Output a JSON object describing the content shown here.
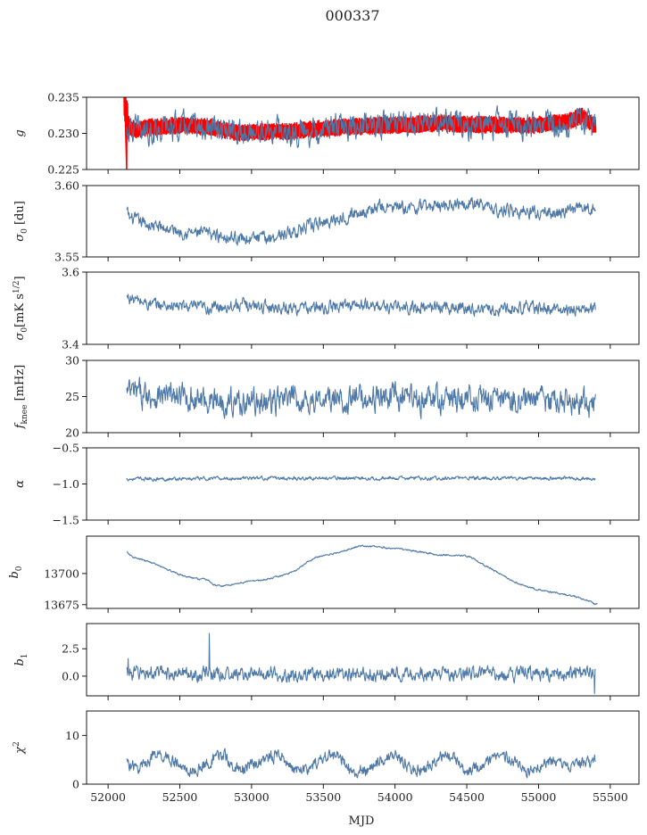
{
  "figure": {
    "title": "000337",
    "xlabel": "MJD"
  },
  "colors": {
    "series": "#4e79a7",
    "overlay": "#ff0000",
    "axis": "#000000",
    "background": "#ffffff"
  },
  "chart_data": [
    {
      "type": "line",
      "ylabel": "g",
      "ylim": [
        0.225,
        0.235
      ],
      "yticks": [
        0.225,
        0.23,
        0.235
      ],
      "ytick_labels": [
        "0.225",
        "0.230",
        "0.235"
      ],
      "xlim": [
        51850,
        55700
      ],
      "series": [
        {
          "color": "#ff0000",
          "band": 0.0009,
          "thin_line": true,
          "x": [
            52110,
            52125,
            52135,
            52150,
            52200,
            52300,
            52500,
            52700,
            52900,
            53100,
            53300,
            53500,
            53700,
            53900,
            54100,
            54300,
            54500,
            54700,
            54900,
            55100,
            55200,
            55300,
            55400
          ],
          "y": [
            0.2348,
            0.2326,
            0.232,
            0.2308,
            0.2305,
            0.2309,
            0.2311,
            0.2309,
            0.2301,
            0.2302,
            0.2303,
            0.2307,
            0.2309,
            0.2311,
            0.2312,
            0.2314,
            0.2312,
            0.2312,
            0.231,
            0.2314,
            0.2316,
            0.2324,
            0.2309
          ]
        },
        {
          "color": "#4e79a7",
          "noise": 0.0013,
          "x": [
            52130,
            52300,
            52500,
            52700,
            52900,
            53100,
            53300,
            53500,
            53700,
            53900,
            54100,
            54300,
            54500,
            54700,
            54900,
            55100,
            55300,
            55400
          ],
          "y": [
            0.2305,
            0.2305,
            0.231,
            0.2305,
            0.23,
            0.2304,
            0.2302,
            0.2307,
            0.231,
            0.2312,
            0.2314,
            0.2313,
            0.2311,
            0.2312,
            0.231,
            0.2314,
            0.2317,
            0.2312
          ]
        }
      ]
    },
    {
      "type": "line",
      "ylabel": "σ0 [du]",
      "ylim": [
        3.55,
        3.6
      ],
      "yticks": [
        3.55,
        3.6
      ],
      "ytick_labels": [
        "3.55",
        "3.60"
      ],
      "xlim": [
        51850,
        55700
      ],
      "series": [
        {
          "color": "#4e79a7",
          "noise": 0.0032,
          "x": [
            52130,
            52150,
            52300,
            52500,
            52700,
            52800,
            52950,
            53100,
            53300,
            53500,
            53700,
            53900,
            54100,
            54300,
            54500,
            54700,
            54900,
            55100,
            55300,
            55400
          ],
          "y": [
            3.582,
            3.577,
            3.572,
            3.568,
            3.566,
            3.565,
            3.563,
            3.563,
            3.568,
            3.574,
            3.58,
            3.585,
            3.584,
            3.586,
            3.589,
            3.583,
            3.582,
            3.58,
            3.584,
            3.584
          ]
        }
      ]
    },
    {
      "type": "line",
      "ylabel": "σ0[mK s^1/2]",
      "ylim": [
        3.4,
        3.6
      ],
      "yticks": [
        3.4,
        3.6
      ],
      "ytick_labels": [
        "3.4",
        "3.6"
      ],
      "xlim": [
        51850,
        55700
      ],
      "series": [
        {
          "color": "#4e79a7",
          "noise": 0.012,
          "x": [
            52130,
            52300,
            52500,
            52700,
            52900,
            53100,
            53300,
            53500,
            53700,
            53900,
            54100,
            54300,
            54500,
            54700,
            54900,
            55100,
            55300,
            55400
          ],
          "y": [
            3.53,
            3.51,
            3.505,
            3.5,
            3.51,
            3.505,
            3.5,
            3.5,
            3.51,
            3.505,
            3.5,
            3.505,
            3.5,
            3.495,
            3.505,
            3.495,
            3.495,
            3.5
          ]
        }
      ]
    },
    {
      "type": "line",
      "ylabel": "f_knee [mHz]",
      "ylim": [
        20,
        30
      ],
      "yticks": [
        20,
        25,
        30
      ],
      "ytick_labels": [
        "20",
        "25",
        "30"
      ],
      "xlim": [
        51850,
        55700
      ],
      "series": [
        {
          "color": "#4e79a7",
          "noise": 1.3,
          "x": [
            52130,
            52300,
            52500,
            52700,
            52900,
            53100,
            53300,
            53500,
            53700,
            53900,
            54100,
            54300,
            54500,
            54700,
            54900,
            55100,
            55300,
            55400
          ],
          "y": [
            25.5,
            25.2,
            24.9,
            24.5,
            24.3,
            24.2,
            24.6,
            24.4,
            24.7,
            24.9,
            24.6,
            24.5,
            24.8,
            24.4,
            24.6,
            24.5,
            24.3,
            24.2
          ]
        }
      ]
    },
    {
      "type": "line",
      "ylabel": "α",
      "ylim": [
        -1.5,
        -0.5
      ],
      "yticks": [
        -1.5,
        -1.0,
        -0.5
      ],
      "ytick_labels": [
        "−1.5",
        "−1.0",
        "−0.5"
      ],
      "xlim": [
        51850,
        55700
      ],
      "series": [
        {
          "color": "#4e79a7",
          "noise": 0.018,
          "x": [
            52130,
            52500,
            53000,
            53500,
            54000,
            54500,
            55000,
            55400
          ],
          "y": [
            -0.93,
            -0.93,
            -0.92,
            -0.92,
            -0.92,
            -0.92,
            -0.92,
            -0.92
          ]
        }
      ]
    },
    {
      "type": "line",
      "ylabel": "b0",
      "ylim": [
        13672,
        13730
      ],
      "yticks": [
        13675,
        13700
      ],
      "ytick_labels": [
        "13675",
        "13700"
      ],
      "xlim": [
        51850,
        55700
      ],
      "series": [
        {
          "color": "#4e79a7",
          "noise": 0.5,
          "x": [
            52130,
            52160,
            52200,
            52300,
            52400,
            52500,
            52600,
            52700,
            52710,
            52730,
            52800,
            52900,
            53000,
            53100,
            53200,
            53300,
            53400,
            53450,
            53500,
            53600,
            53700,
            53750,
            53800,
            53900,
            54000,
            54100,
            54200,
            54300,
            54400,
            54500,
            54550,
            54600,
            54700,
            54800,
            54900,
            55000,
            55100,
            55200,
            55300,
            55370,
            55390,
            55410
          ],
          "y": [
            13717,
            13714,
            13712,
            13709,
            13704,
            13699,
            13696,
            13695,
            13693,
            13691,
            13690,
            13692,
            13694,
            13695,
            13698,
            13702,
            13710,
            13713,
            13714,
            13717,
            13720,
            13722,
            13722,
            13721,
            13720,
            13719,
            13717,
            13715,
            13715,
            13714,
            13712,
            13708,
            13702,
            13695,
            13690,
            13687,
            13685,
            13683,
            13680,
            13677,
            13675,
            13676
          ]
        }
      ]
    },
    {
      "type": "line",
      "ylabel": "b1",
      "ylim": [
        -1.8,
        4.8
      ],
      "yticks": [
        0.0,
        2.5
      ],
      "ytick_labels": [
        "0.0",
        "2.5"
      ],
      "xlim": [
        51850,
        55700
      ],
      "series": [
        {
          "color": "#4e79a7",
          "noise": 0.45,
          "x": [
            52130,
            52500,
            53000,
            53500,
            54000,
            54500,
            55000,
            55400
          ],
          "y": [
            0.3,
            0.25,
            0.15,
            0.15,
            0.2,
            0.2,
            0.25,
            0.25
          ],
          "spikes": [
            [
              52705,
              3.9
            ],
            [
              55390,
              -1.6
            ],
            [
              52140,
              1.6
            ]
          ]
        }
      ]
    },
    {
      "type": "line",
      "ylabel": "χ²",
      "ylim": [
        0,
        15
      ],
      "yticks": [
        0,
        10
      ],
      "ytick_labels": [
        "0",
        "10"
      ],
      "xlim": [
        51850,
        55700
      ],
      "xticks": [
        52000,
        52500,
        53000,
        53500,
        54000,
        54500,
        55000,
        55500
      ],
      "xtick_labels": [
        "52000",
        "52500",
        "53000",
        "53500",
        "54000",
        "54500",
        "55000",
        "55500"
      ],
      "series": [
        {
          "color": "#4e79a7",
          "noise": 0.9,
          "x": [
            52130,
            52200,
            52300,
            52400,
            52500,
            52600,
            52700,
            52800,
            52900,
            53000,
            53100,
            53200,
            53300,
            53400,
            53500,
            53600,
            53700,
            53800,
            53900,
            54000,
            54100,
            54200,
            54300,
            54400,
            54500,
            54600,
            54700,
            54800,
            54900,
            55000,
            55100,
            55200,
            55300,
            55400
          ],
          "y": [
            4.5,
            3.0,
            5.5,
            6.0,
            3.5,
            2.5,
            4.5,
            6.0,
            3.0,
            3.5,
            5.5,
            6.0,
            3.0,
            3.0,
            5.5,
            6.0,
            3.0,
            2.5,
            5.0,
            6.5,
            3.0,
            3.0,
            5.5,
            6.0,
            2.5,
            3.5,
            5.5,
            5.5,
            3.0,
            3.5,
            5.0,
            3.5,
            4.0,
            5.0
          ]
        }
      ]
    }
  ]
}
